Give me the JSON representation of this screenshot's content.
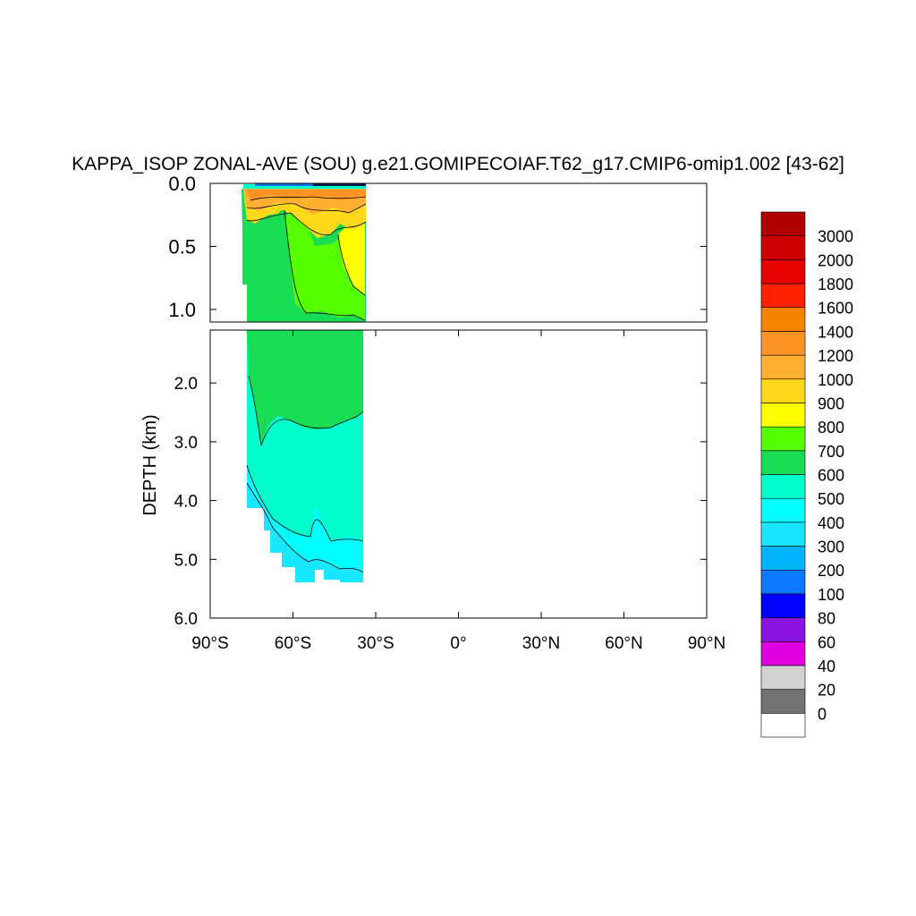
{
  "chart_data": {
    "type": "contour",
    "title": "KAPPA_ISOP ZONAL-AVE (SOU) g.e21.GOMIPECOIAF.T62_g17.CMIP6-omip1.002 [43-62]",
    "ylabel": "DEPTH (km)",
    "xlabel": "",
    "x_ticks": [
      "90°S",
      "60°S",
      "30°S",
      "0°",
      "30°N",
      "60°N",
      "90°N"
    ],
    "x_tick_values": [
      -90,
      -60,
      -30,
      0,
      30,
      60,
      90
    ],
    "xlim": [
      -90,
      90
    ],
    "upper_panel": {
      "ylim": [
        0,
        1.1
      ],
      "y_ticks": [
        "0.0",
        "0.5",
        "1.0"
      ],
      "y_tick_values": [
        0,
        0.5,
        1.0
      ]
    },
    "lower_panel": {
      "ylim": [
        1.1,
        6.0
      ],
      "y_ticks": [
        "2.0",
        "3.0",
        "4.0",
        "5.0",
        "6.0"
      ],
      "y_tick_values": [
        2,
        3,
        4,
        5,
        6
      ]
    },
    "data_extent": {
      "lat_min": -78,
      "lat_max": -34,
      "max_depth_km": 5.4
    },
    "colorbar": {
      "levels": [
        "0",
        "20",
        "40",
        "60",
        "80",
        "100",
        "200",
        "300",
        "400",
        "500",
        "600",
        "700",
        "800",
        "900",
        "1000",
        "1200",
        "1400",
        "1600",
        "1800",
        "2000",
        "3000"
      ],
      "colors": [
        "#ffffff",
        "#737373",
        "#d2d2d2",
        "#e000e0",
        "#8c14e0",
        "#0000ff",
        "#0a78ff",
        "#00b4ff",
        "#19e6ff",
        "#00ffff",
        "#00ffcc",
        "#19dc55",
        "#55ff00",
        "#ffff00",
        "#ffd919",
        "#ffb030",
        "#ff9426",
        "#f58200",
        "#ff2100",
        "#e60000",
        "#cc0000",
        "#b00000"
      ]
    }
  }
}
